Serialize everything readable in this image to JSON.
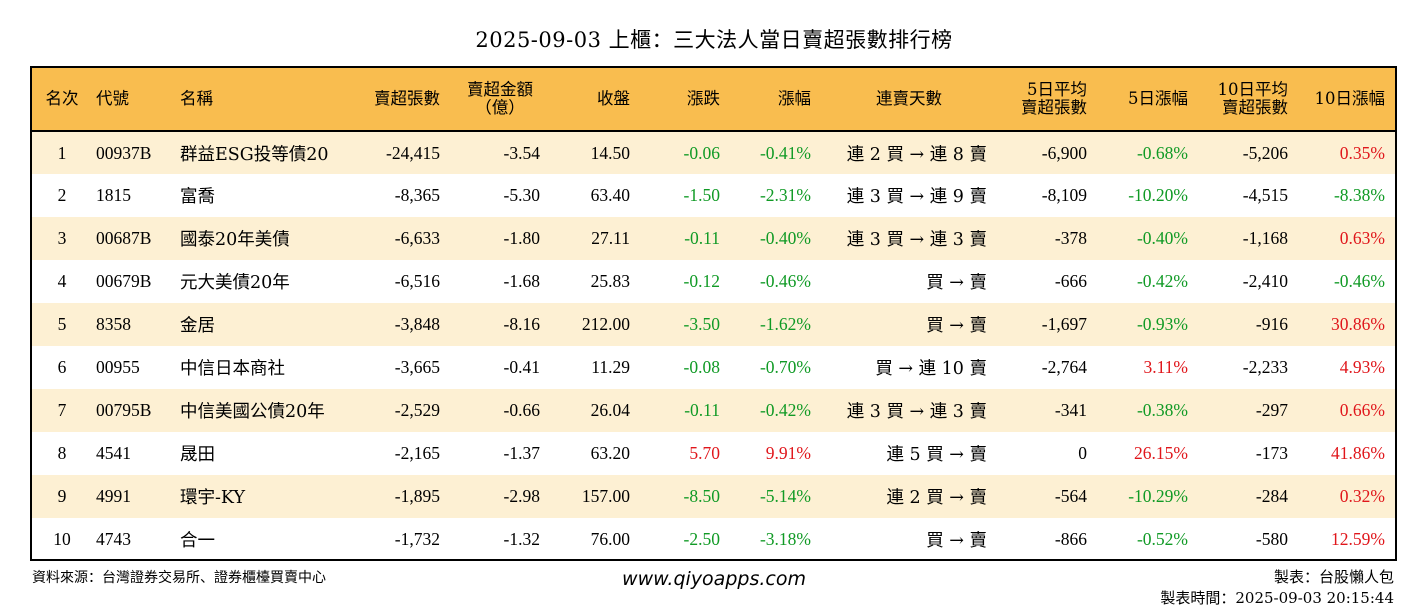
{
  "title": "2025-09-03 上櫃：三大法人當日賣超張數排行榜",
  "columns": [
    {
      "key": "rank",
      "label": "名次"
    },
    {
      "key": "code",
      "label": "代號"
    },
    {
      "key": "name",
      "label": "名稱"
    },
    {
      "key": "shares",
      "label": "賣超張數"
    },
    {
      "key": "amount",
      "label": "賣超金額\n（億）"
    },
    {
      "key": "close",
      "label": "收盤"
    },
    {
      "key": "change",
      "label": "漲跌"
    },
    {
      "key": "pct",
      "label": "漲幅"
    },
    {
      "key": "streak",
      "label": "連賣天數"
    },
    {
      "key": "avg5",
      "label": "5日平均\n賣超張數"
    },
    {
      "key": "pct5",
      "label": "5日漲幅"
    },
    {
      "key": "avg10",
      "label": "10日平均\n賣超張數"
    },
    {
      "key": "pct10",
      "label": "10日漲幅"
    }
  ],
  "rows": [
    {
      "rank": "1",
      "code": "00937B",
      "name": "群益ESG投等債20",
      "shares": "-24,415",
      "amount": "-3.54",
      "close": "14.50",
      "change": "-0.06",
      "pct": "-0.41%",
      "streak": "連 2 買 → 連 8 賣",
      "avg5": "-6,900",
      "pct5": "-0.68%",
      "avg10": "-5,206",
      "pct10": "0.35%"
    },
    {
      "rank": "2",
      "code": "1815",
      "name": "富喬",
      "shares": "-8,365",
      "amount": "-5.30",
      "close": "63.40",
      "change": "-1.50",
      "pct": "-2.31%",
      "streak": "連 3 買 → 連 9 賣",
      "avg5": "-8,109",
      "pct5": "-10.20%",
      "avg10": "-4,515",
      "pct10": "-8.38%"
    },
    {
      "rank": "3",
      "code": "00687B",
      "name": "國泰20年美債",
      "shares": "-6,633",
      "amount": "-1.80",
      "close": "27.11",
      "change": "-0.11",
      "pct": "-0.40%",
      "streak": "連 3 買 → 連 3 賣",
      "avg5": "-378",
      "pct5": "-0.40%",
      "avg10": "-1,168",
      "pct10": "0.63%"
    },
    {
      "rank": "4",
      "code": "00679B",
      "name": "元大美債20年",
      "shares": "-6,516",
      "amount": "-1.68",
      "close": "25.83",
      "change": "-0.12",
      "pct": "-0.46%",
      "streak": "買 → 賣",
      "avg5": "-666",
      "pct5": "-0.42%",
      "avg10": "-2,410",
      "pct10": "-0.46%"
    },
    {
      "rank": "5",
      "code": "8358",
      "name": "金居",
      "shares": "-3,848",
      "amount": "-8.16",
      "close": "212.00",
      "change": "-3.50",
      "pct": "-1.62%",
      "streak": "買 → 賣",
      "avg5": "-1,697",
      "pct5": "-0.93%",
      "avg10": "-916",
      "pct10": "30.86%"
    },
    {
      "rank": "6",
      "code": "00955",
      "name": "中信日本商社",
      "shares": "-3,665",
      "amount": "-0.41",
      "close": "11.29",
      "change": "-0.08",
      "pct": "-0.70%",
      "streak": "買 → 連 10 賣",
      "avg5": "-2,764",
      "pct5": "3.11%",
      "avg10": "-2,233",
      "pct10": "4.93%"
    },
    {
      "rank": "7",
      "code": "00795B",
      "name": "中信美國公債20年",
      "shares": "-2,529",
      "amount": "-0.66",
      "close": "26.04",
      "change": "-0.11",
      "pct": "-0.42%",
      "streak": "連 3 買 → 連 3 賣",
      "avg5": "-341",
      "pct5": "-0.38%",
      "avg10": "-297",
      "pct10": "0.66%"
    },
    {
      "rank": "8",
      "code": "4541",
      "name": "晟田",
      "shares": "-2,165",
      "amount": "-1.37",
      "close": "63.20",
      "change": "5.70",
      "pct": "9.91%",
      "streak": "連 5 買 → 賣",
      "avg5": "0",
      "pct5": "26.15%",
      "avg10": "-173",
      "pct10": "41.86%"
    },
    {
      "rank": "9",
      "code": "4991",
      "name": "環宇-KY",
      "shares": "-1,895",
      "amount": "-2.98",
      "close": "157.00",
      "change": "-8.50",
      "pct": "-5.14%",
      "streak": "連 2 買 → 賣",
      "avg5": "-564",
      "pct5": "-10.29%",
      "avg10": "-284",
      "pct10": "0.32%"
    },
    {
      "rank": "10",
      "code": "4743",
      "name": "合一",
      "shares": "-1,732",
      "amount": "-1.32",
      "close": "76.00",
      "change": "-2.50",
      "pct": "-3.18%",
      "streak": "買 → 賣",
      "avg5": "-866",
      "pct5": "-0.52%",
      "avg10": "-580",
      "pct10": "12.59%"
    }
  ],
  "colors": {
    "header_bg": "#f9bd4f",
    "row_alt_bg": "#fdf0d3",
    "positive": "#e0161b",
    "negative": "#109a25"
  },
  "footer": {
    "source": "資料來源：台灣證券交易所、證券櫃檯買賣中心",
    "website": "www.qiyoapps.com",
    "maker": "製表：台股懶人包",
    "made_time": "製表時間：2025-09-03 20:15:44"
  }
}
